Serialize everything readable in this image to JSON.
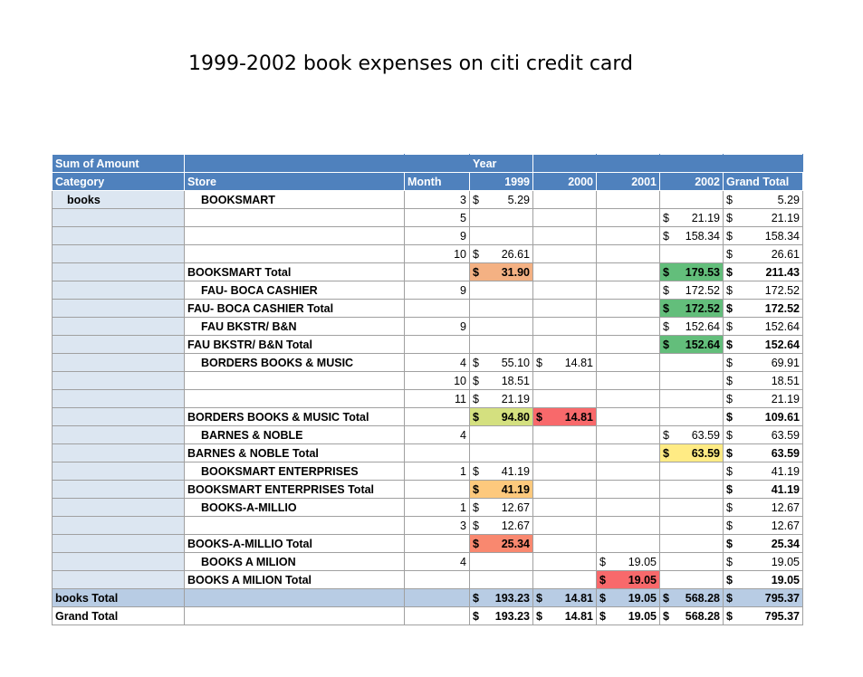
{
  "title": "1999-2002 book expenses on citi credit card",
  "header": {
    "sum_label": "Sum of Amount",
    "year_label": "Year",
    "category": "Category",
    "store": "Store",
    "month": "Month",
    "years": [
      "1999",
      "2000",
      "2001",
      "2002"
    ],
    "grand_total": "Grand Total"
  },
  "currency": "$",
  "rows": [
    {
      "cat": "books",
      "store": "BOOKSMART",
      "month": "3",
      "y1999": "5.29",
      "y2000": "",
      "y2001": "",
      "y2002": "",
      "gt": "5.29"
    },
    {
      "cat": "",
      "store": "",
      "month": "5",
      "y1999": "",
      "y2000": "",
      "y2001": "",
      "y2002": "21.19",
      "gt": "21.19"
    },
    {
      "cat": "",
      "store": "",
      "month": "9",
      "y1999": "",
      "y2000": "",
      "y2001": "",
      "y2002": "158.34",
      "gt": "158.34"
    },
    {
      "cat": "",
      "store": "",
      "month": "10",
      "y1999": "26.61",
      "y2000": "",
      "y2001": "",
      "y2002": "",
      "gt": "26.61"
    },
    {
      "total": true,
      "store": "BOOKSMART Total",
      "y1999": "31.90",
      "y2002": "179.53",
      "gt": "211.43"
    },
    {
      "cat": "",
      "store": "FAU- BOCA CASHIER",
      "month": "9",
      "y2002": "172.52",
      "gt": "172.52"
    },
    {
      "total": true,
      "store": "FAU- BOCA CASHIER  Total",
      "y2002": "172.52",
      "gt": "172.52"
    },
    {
      "cat": "",
      "store": "FAU BKSTR/ B&N",
      "month": "9",
      "y2002": "152.64",
      "gt": "152.64"
    },
    {
      "total": true,
      "store": "FAU BKSTR/ B&N Total",
      "y2002": "152.64",
      "gt": "152.64"
    },
    {
      "cat": "",
      "store": "BORDERS BOOKS & MUSIC",
      "month": "4",
      "y1999": "55.10",
      "y2000": "14.81",
      "gt": "69.91"
    },
    {
      "cat": "",
      "store": "",
      "month": "10",
      "y1999": "18.51",
      "gt": "18.51"
    },
    {
      "cat": "",
      "store": "",
      "month": "11",
      "y1999": "21.19",
      "gt": "21.19"
    },
    {
      "total": true,
      "store": "BORDERS BOOKS & MUSIC Total",
      "y1999": "94.80",
      "y2000": "14.81",
      "gt": "109.61"
    },
    {
      "cat": "",
      "store": "BARNES & NOBLE",
      "month": "4",
      "y2002": "63.59",
      "gt": "63.59"
    },
    {
      "total": true,
      "store": "BARNES & NOBLE  Total",
      "y2002": "63.59",
      "gt": "63.59"
    },
    {
      "cat": "",
      "store": "BOOKSMART ENTERPRISES",
      "month": "1",
      "y1999": "41.19",
      "gt": "41.19"
    },
    {
      "total": true,
      "store": "BOOKSMART ENTERPRISES Total",
      "y1999": "41.19",
      "gt": "41.19"
    },
    {
      "cat": "",
      "store": "BOOKS-A-MILLIO",
      "month": "1",
      "y1999": "12.67",
      "gt": "12.67"
    },
    {
      "cat": "",
      "store": "",
      "month": "3",
      "y1999": "12.67",
      "gt": "12.67"
    },
    {
      "total": true,
      "store": "BOOKS-A-MILLIO Total",
      "y1999": "25.34",
      "gt": "25.34"
    },
    {
      "cat": "",
      "store": "BOOKS A MILION",
      "month": "4",
      "y2001": "19.05",
      "gt": "19.05"
    },
    {
      "total": true,
      "store": "BOOKS A MILION Total",
      "y2001": "19.05",
      "gt": "19.05"
    }
  ],
  "books_total": {
    "label": "books Total",
    "y1999": "193.23",
    "y2000": "14.81",
    "y2001": "19.05",
    "y2002": "568.28",
    "gt": "795.37"
  },
  "grand_total_row": {
    "label": "Grand Total",
    "y1999": "193.23",
    "y2000": "14.81",
    "y2001": "19.05",
    "y2002": "568.28",
    "gt": "795.37"
  },
  "highlight_colors": {
    "orange": "#f4b183",
    "green": "#63be7b",
    "yellow": "#ffeb84",
    "red": "#f8696b",
    "lime": "#d4e07f",
    "amber": "#fdc97d",
    "salmon": "#f9886f",
    "header": "#4f81bd",
    "category": "#dce6f1"
  }
}
